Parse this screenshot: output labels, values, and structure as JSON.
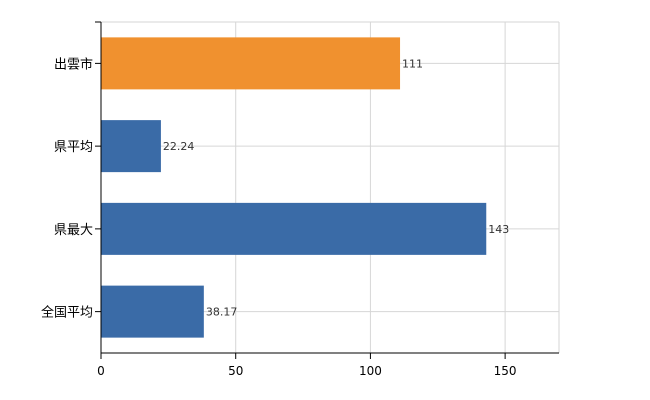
{
  "chart_data": {
    "type": "bar",
    "orientation": "horizontal",
    "title": "",
    "xlabel": "",
    "ylabel": "",
    "categories": [
      "出雲市",
      "県平均",
      "県最大",
      "全国平均"
    ],
    "values": [
      111,
      22.24,
      143,
      38.17
    ],
    "value_labels": [
      "111",
      "22.24",
      "143",
      "38.17"
    ],
    "bar_colors": [
      "#f0912f",
      "#3a6ba7",
      "#3a6ba7",
      "#3a6ba7"
    ],
    "xlim": [
      0,
      170
    ],
    "xticks": [
      0,
      50,
      100,
      150
    ],
    "xtick_labels": [
      "0",
      "50",
      "100",
      "150"
    ],
    "grid": true,
    "legend": "none"
  },
  "colors": {
    "highlight": "#f0912f",
    "bar": "#3a6ba7",
    "grid": "#d6d6d6"
  }
}
